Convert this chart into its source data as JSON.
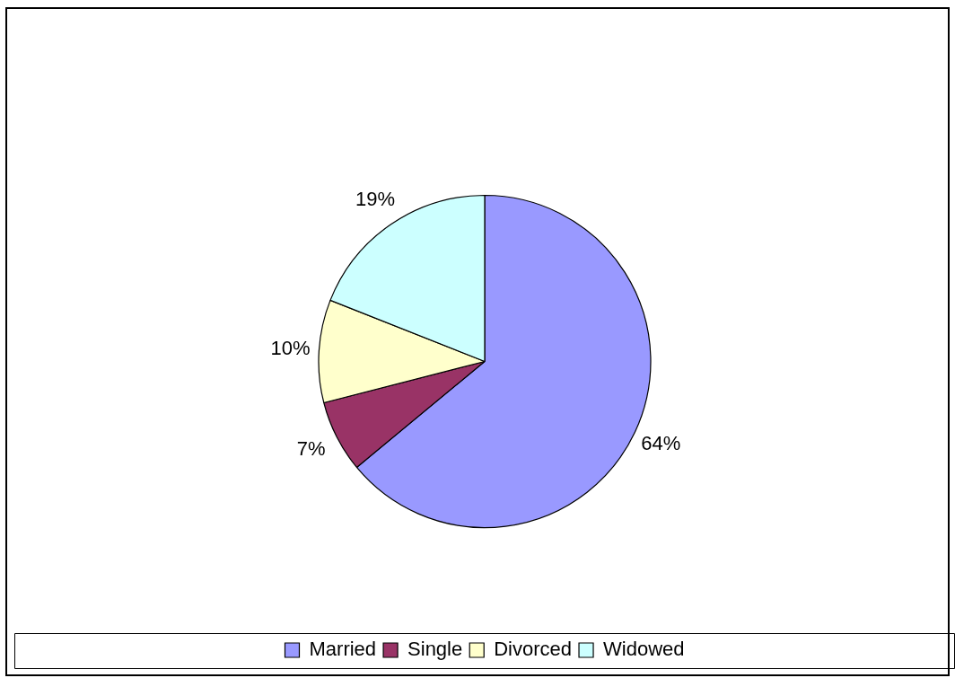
{
  "chart_data": {
    "type": "pie",
    "categories": [
      "Married",
      "Single",
      "Divorced",
      "Widowed"
    ],
    "values": [
      64,
      7,
      10,
      19
    ],
    "colors": [
      "#9999ff",
      "#993366",
      "#ffffcc",
      "#ccffff"
    ],
    "value_labels": [
      "64%",
      "7%",
      "10%",
      "19%"
    ],
    "legend": "bottom"
  }
}
